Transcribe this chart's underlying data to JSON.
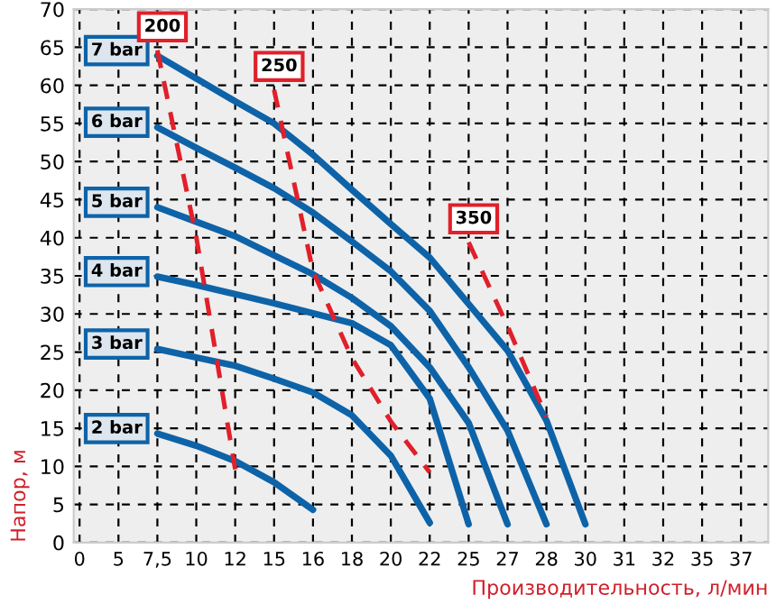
{
  "chart_data": {
    "type": "line",
    "xlabel": "Производительность, л/мин",
    "ylabel": "Напор, м",
    "categories": [
      "0",
      "5",
      "7,5",
      "10",
      "12",
      "15",
      "16",
      "18",
      "20",
      "22",
      "25",
      "27",
      "28",
      "30",
      "31",
      "32",
      "35",
      "37"
    ],
    "ylim": [
      0,
      70
    ],
    "yticks": [
      0,
      5,
      10,
      15,
      20,
      25,
      30,
      35,
      40,
      45,
      50,
      55,
      60,
      65,
      70
    ],
    "grid": true,
    "legend": false,
    "series": [
      {
        "name": "2 bar",
        "color": "#0e63a8",
        "line_style": "solid",
        "values": [
          null,
          null,
          14.3,
          12.7,
          10.7,
          7.9,
          4.3,
          null,
          null,
          null,
          null,
          null,
          null,
          null,
          null,
          null,
          null,
          null
        ]
      },
      {
        "name": "3 bar",
        "color": "#0e63a8",
        "line_style": "solid",
        "values": [
          null,
          null,
          25.4,
          24.3,
          23.2,
          21.5,
          19.7,
          16.7,
          11.4,
          2.6,
          null,
          null,
          null,
          null,
          null,
          null,
          null,
          null
        ]
      },
      {
        "name": "4 bar",
        "color": "#0e63a8",
        "line_style": "solid",
        "values": [
          null,
          null,
          34.9,
          33.8,
          32.6,
          31.4,
          30.1,
          28.8,
          25.9,
          18.9,
          2.4,
          null,
          null,
          null,
          null,
          null,
          null,
          null
        ]
      },
      {
        "name": "5 bar",
        "color": "#0e63a8",
        "line_style": "solid",
        "values": [
          null,
          null,
          44.0,
          42.1,
          40.2,
          37.7,
          35.2,
          32.1,
          28.4,
          23,
          15.7,
          2.4,
          null,
          null,
          null,
          null,
          null,
          null
        ]
      },
      {
        "name": "6 bar",
        "color": "#0e63a8",
        "line_style": "solid",
        "values": [
          null,
          null,
          54.5,
          51.8,
          49.2,
          46.5,
          43.3,
          39.5,
          35.6,
          30.4,
          23,
          14.7,
          2.4,
          null,
          null,
          null,
          null,
          null
        ]
      },
      {
        "name": "7 bar",
        "color": "#0e63a8",
        "line_style": "solid",
        "values": [
          null,
          null,
          63.9,
          60.9,
          57.9,
          55.0,
          50.9,
          46.3,
          41.8,
          37.4,
          31.3,
          25.2,
          16,
          2.4,
          null,
          null,
          null,
          null
        ]
      },
      {
        "name": "200",
        "color": "#e0202a",
        "line_style": "dashed",
        "values": [
          null,
          null,
          64.6,
          40.1,
          9.6,
          null,
          null,
          null,
          null,
          null,
          null,
          null,
          null,
          null,
          null,
          null,
          null,
          null
        ]
      },
      {
        "name": "250",
        "color": "#e0202a",
        "line_style": "dashed",
        "values": [
          null,
          null,
          null,
          null,
          null,
          59.4,
          35.6,
          24.2,
          15.9,
          9.2,
          null,
          null,
          null,
          null,
          null,
          null,
          null,
          null
        ]
      },
      {
        "name": "350",
        "color": "#e0202a",
        "line_style": "dashed",
        "values": [
          null,
          null,
          null,
          null,
          null,
          null,
          null,
          null,
          null,
          null,
          39.4,
          28.4,
          16.5,
          null,
          null,
          null,
          null,
          null
        ]
      }
    ]
  }
}
